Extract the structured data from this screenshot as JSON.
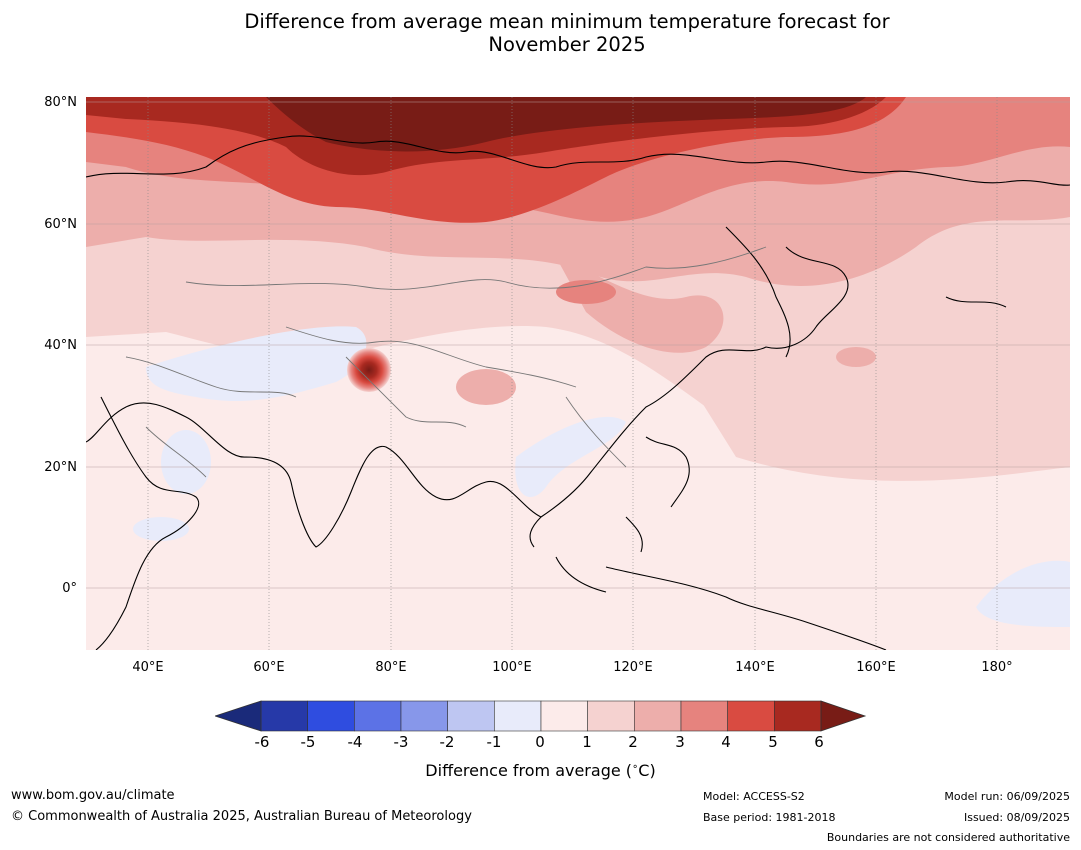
{
  "title": {
    "line1": "Difference from average mean minimum temperature forecast for",
    "line2": "November 2025"
  },
  "map": {
    "lat_labels": [
      "80°N",
      "60°N",
      "40°N",
      "20°N",
      "0°"
    ],
    "lon_labels": [
      "40°E",
      "60°E",
      "80°E",
      "100°E",
      "120°E",
      "140°E",
      "160°E",
      "180°"
    ],
    "extent": {
      "lon_min": 30,
      "lon_max": 192,
      "lat_min": -10,
      "lat_max": 80
    },
    "hotspot": {
      "lon": 76.5,
      "lat": 36.5
    }
  },
  "colorbar": {
    "ticks": [
      "-6",
      "-5",
      "-4",
      "-3",
      "-2",
      "-1",
      "0",
      "1",
      "2",
      "3",
      "4",
      "5",
      "6"
    ],
    "colors": [
      "#2639a8",
      "#2f4de0",
      "#5c72e6",
      "#8797ea",
      "#bec6f2",
      "#e8ebfa",
      "#fcebea",
      "#f5d2d0",
      "#edaeab",
      "#e6837e",
      "#d94b41",
      "#a82920"
    ],
    "under_color": "#1a2a7a",
    "over_color": "#781c16",
    "label": "Difference from average (",
    "label_degree": "∘",
    "label_unit": "C)"
  },
  "footer": {
    "website": "www.bom.gov.au/climate",
    "copyright": "© Commonwealth of Australia 2025, Australian Bureau of Meteorology",
    "model": "Model: ACCESS-S2",
    "base_period": "Base period: 1981-2018",
    "model_run": "Model run: 06/09/2025",
    "issued": "Issued: 08/09/2025",
    "disclaimer": "Boundaries are not considered authoritative"
  }
}
